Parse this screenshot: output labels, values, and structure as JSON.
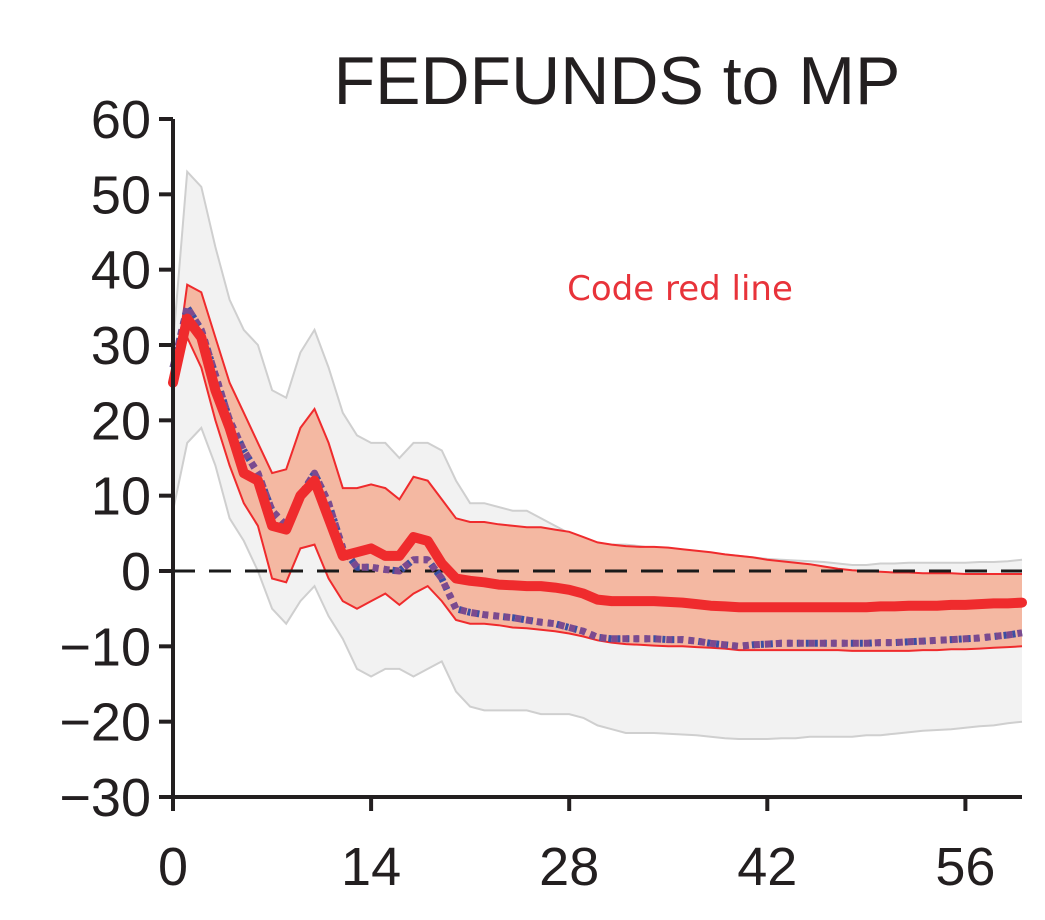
{
  "chart_data": {
    "type": "line",
    "title": "FEDFUNDS to MP",
    "xlabel": "",
    "ylabel": "",
    "xlim": [
      0,
      60
    ],
    "ylim": [
      -30,
      60
    ],
    "x_ticks": [
      "0",
      "14",
      "28",
      "42",
      "56"
    ],
    "x_tick_values": [
      0,
      14,
      28,
      42,
      56
    ],
    "y_ticks": [
      "60",
      "50",
      "40",
      "30",
      "20",
      "10",
      "0",
      "−10",
      "−20",
      "−30"
    ],
    "y_tick_values": [
      60,
      50,
      40,
      30,
      20,
      10,
      0,
      -10,
      -20,
      -30
    ],
    "zero_line": true,
    "grid": false,
    "annotation": "Code red line",
    "x": [
      0,
      1,
      2,
      3,
      4,
      5,
      6,
      7,
      8,
      9,
      10,
      11,
      12,
      13,
      14,
      15,
      16,
      17,
      18,
      19,
      20,
      21,
      22,
      23,
      24,
      25,
      26,
      27,
      28,
      29,
      30,
      31,
      32,
      33,
      34,
      35,
      36,
      37,
      38,
      39,
      40,
      41,
      42,
      43,
      44,
      45,
      46,
      47,
      48,
      49,
      50,
      51,
      52,
      53,
      54,
      55,
      56,
      57,
      58,
      59,
      60
    ],
    "series": [
      {
        "role": "median",
        "color": "#ef2b2d",
        "style": "solid",
        "values": [
          25,
          33.5,
          31,
          24,
          19,
          13,
          12,
          6,
          5.5,
          10,
          12,
          7,
          2,
          2.5,
          3,
          2,
          2,
          4.5,
          4,
          1,
          -1,
          -1.3,
          -1.5,
          -1.8,
          -1.9,
          -2,
          -2,
          -2.2,
          -2.5,
          -3,
          -3.8,
          -4,
          -4,
          -4,
          -4,
          -4.1,
          -4.2,
          -4.4,
          -4.6,
          -4.7,
          -4.8,
          -4.8,
          -4.8,
          -4.8,
          -4.8,
          -4.8,
          -4.8,
          -4.8,
          -4.8,
          -4.8,
          -4.7,
          -4.7,
          -4.6,
          -4.6,
          -4.6,
          -4.5,
          -4.5,
          -4.4,
          -4.3,
          -4.3,
          -4.2
        ]
      },
      {
        "role": "alternative",
        "color": "#7b4a8f",
        "style": "dotted",
        "values": [
          27,
          35,
          32,
          26,
          20,
          16,
          13,
          8,
          6,
          10,
          13,
          9,
          3,
          0.5,
          0.5,
          0.2,
          0,
          1.5,
          1.5,
          -1,
          -5,
          -5.5,
          -5.8,
          -6,
          -6.2,
          -6.5,
          -6.8,
          -7,
          -7.5,
          -8,
          -8.8,
          -9,
          -9,
          -9,
          -9,
          -9.1,
          -9.1,
          -9.3,
          -9.6,
          -9.8,
          -10,
          -9.8,
          -9.7,
          -9.6,
          -9.6,
          -9.6,
          -9.6,
          -9.6,
          -9.6,
          -9.6,
          -9.5,
          -9.5,
          -9.4,
          -9.3,
          -9.2,
          -9.1,
          -9,
          -8.9,
          -8.7,
          -8.5,
          -8.2
        ]
      }
    ],
    "bands": [
      {
        "role": "inner",
        "color": "#f4b8a2",
        "edge_color": "#ef2b2d",
        "upper": [
          24,
          38,
          37,
          31,
          25,
          21,
          17,
          13,
          13.5,
          19,
          21.5,
          17,
          11,
          11,
          11.5,
          11,
          9.5,
          12.5,
          12,
          9.5,
          7,
          6.5,
          6.5,
          6.2,
          6,
          5.8,
          5.8,
          5.5,
          5.2,
          4.5,
          3.8,
          3.5,
          3.3,
          3.2,
          3.2,
          3.1,
          2.9,
          2.7,
          2.5,
          2.2,
          2,
          1.8,
          1.5,
          1.3,
          1.1,
          0.9,
          0.6,
          0.3,
          0.1,
          0,
          -0.1,
          -0.2,
          -0.2,
          -0.3,
          -0.3,
          -0.3,
          -0.4,
          -0.4,
          -0.4,
          -0.4,
          -0.4
        ],
        "lower": [
          24,
          31,
          27,
          20,
          14,
          9,
          6,
          -1,
          -1.5,
          3,
          3.5,
          -1,
          -4,
          -5,
          -4,
          -3,
          -4.5,
          -3,
          -2,
          -4,
          -6.5,
          -7,
          -7,
          -7.2,
          -7.5,
          -7.6,
          -7.8,
          -8,
          -8.3,
          -8.7,
          -9.2,
          -9.5,
          -9.7,
          -9.8,
          -9.9,
          -10,
          -10,
          -10.1,
          -10.2,
          -10.3,
          -10.5,
          -10.5,
          -10.5,
          -10.5,
          -10.5,
          -10.5,
          -10.5,
          -10.5,
          -10.6,
          -10.6,
          -10.6,
          -10.6,
          -10.6,
          -10.5,
          -10.5,
          -10.4,
          -10.4,
          -10.3,
          -10.2,
          -10.1,
          -10
        ]
      },
      {
        "role": "outer",
        "color": "#f2f2f2",
        "edge_color": "#cfcfcf",
        "upper": [
          30,
          53,
          51,
          43,
          36,
          32,
          30,
          24,
          23,
          29,
          32,
          27,
          21,
          18,
          17,
          17,
          15,
          17,
          17,
          16,
          12,
          9,
          9,
          8.5,
          8,
          8,
          7,
          6,
          5,
          4,
          3.5,
          3.5,
          3.5,
          3.3,
          3,
          2.8,
          2.6,
          2.5,
          2.4,
          2.2,
          2,
          1.8,
          1.6,
          1.5,
          1.4,
          1.3,
          1.2,
          1,
          0.8,
          0.8,
          1,
          1,
          1.1,
          1.1,
          1.1,
          1.1,
          1.1,
          1.2,
          1.2,
          1.3,
          1.5
        ],
        "lower": [
          8,
          17,
          19,
          14,
          7,
          4,
          0,
          -5,
          -7,
          -4,
          -2,
          -6,
          -9,
          -13,
          -14,
          -13,
          -13,
          -14,
          -13,
          -12,
          -16,
          -18,
          -18.5,
          -18.5,
          -18.5,
          -18.5,
          -19,
          -19,
          -19,
          -19.5,
          -20.5,
          -21,
          -21.5,
          -21.5,
          -21.5,
          -21.6,
          -21.7,
          -21.8,
          -22,
          -22.2,
          -22.3,
          -22.3,
          -22.3,
          -22.2,
          -22.2,
          -22,
          -22,
          -22,
          -22,
          -21.8,
          -21.8,
          -21.6,
          -21.4,
          -21.2,
          -21.1,
          -21,
          -20.8,
          -20.6,
          -20.5,
          -20.2,
          -20
        ]
      }
    ]
  }
}
